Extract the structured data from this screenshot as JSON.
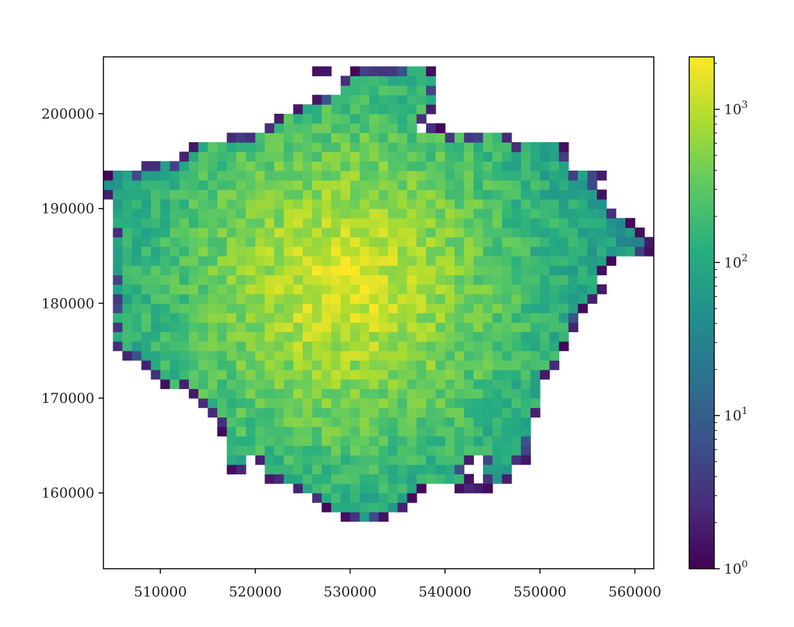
{
  "chart_data": {
    "type": "heatmap",
    "title": "",
    "xlabel": "",
    "ylabel": "",
    "xlim": [
      504000,
      562000
    ],
    "ylim": [
      152000,
      206000
    ],
    "bin_size": 1000,
    "x_ticks": [
      510000,
      520000,
      530000,
      540000,
      550000,
      560000
    ],
    "x_tick_labels": [
      "510000",
      "520000",
      "530000",
      "540000",
      "550000",
      "560000"
    ],
    "y_ticks": [
      160000,
      170000,
      180000,
      190000,
      200000
    ],
    "y_tick_labels": [
      "160000",
      "170000",
      "180000",
      "190000",
      "200000"
    ],
    "colorbar": {
      "scale": "log",
      "colormap": "viridis",
      "range": [
        1,
        2200
      ],
      "ticks": [
        1,
        10,
        100,
        1000
      ],
      "tick_labels": [
        {
          "base": "10",
          "exp": "0"
        },
        {
          "base": "10",
          "exp": "1"
        },
        {
          "base": "10",
          "exp": "2"
        },
        {
          "base": "10",
          "exp": "3"
        }
      ]
    },
    "peak": {
      "x": 529500,
      "y": 182000,
      "value": 2000
    },
    "region": {
      "y_from": 157000,
      "rows": [
        [
          [
            529000,
            534000
          ]
        ],
        [
          [
            527000,
            536000
          ]
        ],
        [
          [
            526000,
            537000
          ]
        ],
        [
          [
            524000,
            538000
          ],
          [
            541000,
            545000
          ]
        ],
        [
          [
            521000,
            543000
          ],
          [
            544000,
            547000
          ]
        ],
        [
          [
            517000,
            519000
          ],
          [
            521000,
            542000
          ],
          [
            544000,
            547000
          ]
        ],
        [
          [
            517000,
            519000
          ],
          [
            520000,
            543000
          ],
          [
            544000,
            549000
          ]
        ],
        [
          [
            517000,
            549000
          ]
        ],
        [
          [
            517000,
            549000
          ]
        ],
        [
          [
            516000,
            549000
          ]
        ],
        [
          [
            516000,
            549000
          ]
        ],
        [
          [
            515000,
            550000
          ]
        ],
        [
          [
            514000,
            550000
          ]
        ],
        [
          [
            513000,
            550000
          ]
        ],
        [
          [
            510000,
            550000
          ]
        ],
        [
          [
            509000,
            551000
          ]
        ],
        [
          [
            508000,
            552000
          ]
        ],
        [
          [
            506000,
            552000
          ]
        ],
        [
          [
            505000,
            553000
          ]
        ],
        [
          [
            505000,
            553000
          ]
        ],
        [
          [
            505000,
            554000
          ]
        ],
        [
          [
            505000,
            554000
          ]
        ],
        [
          [
            505000,
            555000
          ]
        ],
        [
          [
            505000,
            556000
          ]
        ],
        [
          [
            505000,
            557000
          ]
        ],
        [
          [
            505000,
            556000
          ]
        ],
        [
          [
            505000,
            557000
          ]
        ],
        [
          [
            505000,
            558000
          ]
        ],
        [
          [
            505000,
            562000
          ]
        ],
        [
          [
            505000,
            562000
          ]
        ],
        [
          [
            505000,
            561000
          ]
        ],
        [
          [
            505000,
            560000
          ]
        ],
        [
          [
            505000,
            558000
          ]
        ],
        [
          [
            505000,
            557000
          ]
        ],
        [
          [
            504000,
            557000
          ]
        ],
        [
          [
            504000,
            556000
          ]
        ],
        [
          [
            504000,
            557000
          ]
        ],
        [
          [
            508000,
            553000
          ]
        ],
        [
          [
            512000,
            553000
          ]
        ],
        [
          [
            513000,
            553000
          ]
        ],
        [
          [
            517000,
            547000
          ]
        ],
        [
          [
            521000,
            537000
          ],
          [
            538000,
            540000
          ]
        ],
        [
          [
            522000,
            538000
          ]
        ],
        [
          [
            524000,
            539000
          ]
        ],
        [
          [
            526000,
            539000
          ]
        ],
        [
          [
            529000,
            539000
          ]
        ],
        [
          [
            529000,
            539000
          ]
        ],
        [
          [
            526000,
            528000
          ],
          [
            530000,
            539000
          ]
        ]
      ]
    }
  }
}
